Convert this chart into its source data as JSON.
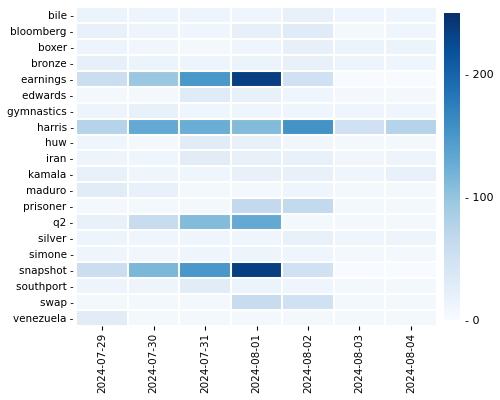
{
  "tags": [
    "bile",
    "bloomberg",
    "boxer",
    "bronze",
    "earnings",
    "edwards",
    "gymnastics",
    "harris",
    "huw",
    "iran",
    "kamala",
    "maduro",
    "prisoner",
    "q2",
    "silver",
    "simone",
    "snapshot",
    "southport",
    "swap",
    "venezuela"
  ],
  "dates": [
    "2024-07-29",
    "2024-07-30",
    "2024-07-31",
    "2024-08-01",
    "2024-08-02",
    "2024-08-03",
    "2024-08-04"
  ],
  "values": [
    [
      15,
      12,
      12,
      10,
      18,
      10,
      10
    ],
    [
      18,
      12,
      10,
      20,
      30,
      5,
      10
    ],
    [
      12,
      8,
      5,
      10,
      20,
      15,
      15
    ],
    [
      20,
      15,
      12,
      15,
      18,
      12,
      10
    ],
    [
      55,
      95,
      150,
      235,
      50,
      0,
      0
    ],
    [
      5,
      5,
      30,
      18,
      10,
      5,
      5
    ],
    [
      12,
      18,
      10,
      10,
      10,
      10,
      10
    ],
    [
      75,
      130,
      125,
      110,
      155,
      50,
      75
    ],
    [
      10,
      5,
      28,
      18,
      8,
      5,
      5
    ],
    [
      12,
      10,
      28,
      18,
      18,
      8,
      12
    ],
    [
      18,
      10,
      10,
      18,
      18,
      10,
      18
    ],
    [
      28,
      18,
      5,
      5,
      10,
      5,
      5
    ],
    [
      5,
      5,
      5,
      65,
      65,
      5,
      5
    ],
    [
      18,
      60,
      110,
      130,
      5,
      5,
      5
    ],
    [
      12,
      10,
      10,
      10,
      18,
      10,
      12
    ],
    [
      10,
      8,
      10,
      12,
      10,
      5,
      5
    ],
    [
      55,
      115,
      150,
      235,
      50,
      0,
      0
    ],
    [
      12,
      12,
      28,
      15,
      10,
      5,
      5
    ],
    [
      5,
      5,
      5,
      60,
      50,
      5,
      5
    ],
    [
      28,
      5,
      5,
      5,
      5,
      5,
      5
    ]
  ],
  "cmap": "Blues",
  "vmin": 0,
  "vmax": 250,
  "colorbar_ticks": [
    0,
    100,
    200
  ],
  "colorbar_labels": [
    "- 0",
    "- 100",
    "- 200"
  ],
  "figsize": [
    5.0,
    4.0
  ],
  "dpi": 100
}
